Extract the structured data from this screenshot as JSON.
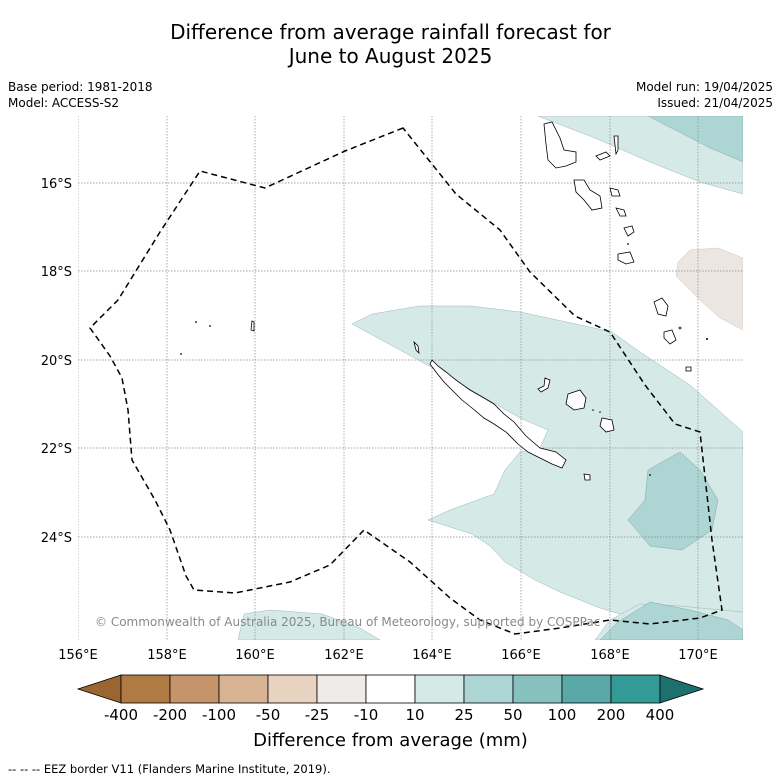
{
  "title_line1": "Difference from average rainfall forecast for",
  "title_line2": "June to August 2025",
  "base_period": "Base period: 1981-2018",
  "model": "Model: ACCESS-S2",
  "model_run": "Model run: 19/04/2025",
  "issued": "Issued: 21/04/2025",
  "copyright": "© Commonwealth of Australia 2025, Bureau of Meteorology, supported by COSPPac",
  "lon_ticks": [
    "156°E",
    "158°E",
    "160°E",
    "162°E",
    "164°E",
    "166°E",
    "168°E",
    "170°E"
  ],
  "lat_ticks": [
    "16°S",
    "18°S",
    "20°S",
    "22°S",
    "24°S"
  ],
  "colorbar": {
    "title": "Difference from average (mm)",
    "labels": [
      "-400",
      "-200",
      "-100",
      "-50",
      "-25",
      "-10",
      "10",
      "25",
      "50",
      "100",
      "200",
      "400"
    ],
    "colors": {
      "under": "#9a6530",
      "bins": [
        "#b07a44",
        "#c5946a",
        "#d7b394",
        "#e8d3c0",
        "#eeebe8",
        "#ffffff",
        "#d5e9e7",
        "#acd5d4",
        "#86c0bf",
        "#5aa9a8",
        "#349a97"
      ],
      "over": "#1d706d"
    }
  },
  "map_colors": {
    "wet_light": "#d5e9e7",
    "wet_medium": "#acd5d4",
    "dry_neutral": "#ebe6e2"
  },
  "footnote": "-- -- -- EEZ border V11 (Flanders Marine Institute, 2019)."
}
